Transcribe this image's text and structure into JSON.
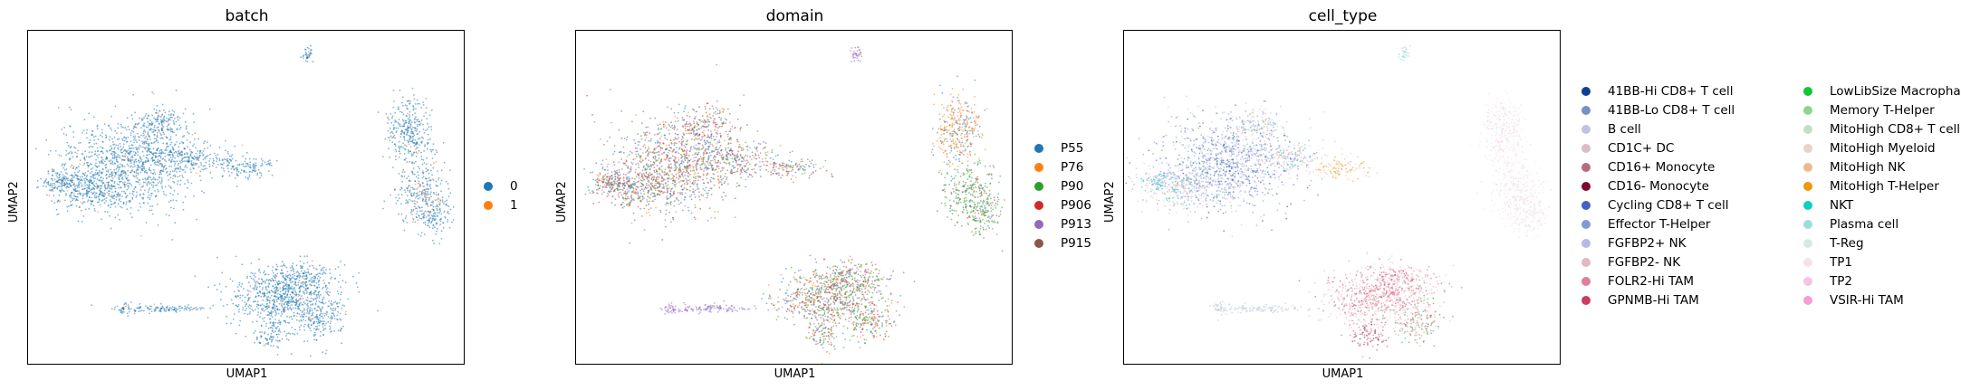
{
  "chart_data": [
    {
      "type": "scatter",
      "title": "batch",
      "xlabel": "UMAP1",
      "ylabel": "UMAP2",
      "ticks": "none",
      "legend_position": "right",
      "series": [
        {
          "name": "0",
          "color": "#1f77b4"
        },
        {
          "name": "1",
          "color": "#ff7f0e"
        }
      ]
    },
    {
      "type": "scatter",
      "title": "domain",
      "xlabel": "UMAP1",
      "ylabel": "UMAP2",
      "ticks": "none",
      "legend_position": "right",
      "series": [
        {
          "name": "P55",
          "color": "#1f77b4"
        },
        {
          "name": "P76",
          "color": "#ff7f0e"
        },
        {
          "name": "P90",
          "color": "#2ca02c"
        },
        {
          "name": "P906",
          "color": "#d62728"
        },
        {
          "name": "P913",
          "color": "#9467bd"
        },
        {
          "name": "P915",
          "color": "#8c564b"
        }
      ]
    },
    {
      "type": "scatter",
      "title": "cell_type",
      "xlabel": "UMAP1",
      "ylabel": "UMAP2",
      "ticks": "none",
      "legend_position": "right",
      "series": [
        {
          "name": "41BB-Hi CD8+ T cell",
          "color": "#0e3f93"
        },
        {
          "name": "41BB-Lo CD8+ T cell",
          "color": "#7a90c4"
        },
        {
          "name": "B cell",
          "color": "#c0c2de"
        },
        {
          "name": "CD1C+ DC",
          "color": "#dcbcc3"
        },
        {
          "name": "CD16+ Monocyte",
          "color": "#b56d7a"
        },
        {
          "name": "CD16- Monocyte",
          "color": "#7b0b32"
        },
        {
          "name": "Cycling CD8+ T cell",
          "color": "#4560c6"
        },
        {
          "name": "Effector T-Helper",
          "color": "#8598d5"
        },
        {
          "name": "FGFBP2+ NK",
          "color": "#b5bbe4"
        },
        {
          "name": "FGFBP2- NK",
          "color": "#e2b9c2"
        },
        {
          "name": "FOLR2-Hi TAM",
          "color": "#e07f98"
        },
        {
          "name": "GPNMB-Hi TAM",
          "color": "#ca3c66"
        },
        {
          "name": "LowLibSize Macrophage",
          "color": "#11c638"
        },
        {
          "name": "Memory T-Helper",
          "color": "#8dd593"
        },
        {
          "name": "MitoHigh CD8+ T cell",
          "color": "#c6dec7"
        },
        {
          "name": "MitoHigh Myeloid",
          "color": "#ead3c6"
        },
        {
          "name": "MitoHigh NK",
          "color": "#f0b98d"
        },
        {
          "name": "MitoHigh T-Helper",
          "color": "#ef9708"
        },
        {
          "name": "NKT",
          "color": "#0fcfc0"
        },
        {
          "name": "Plasma cell",
          "color": "#9cded6"
        },
        {
          "name": "T-Reg",
          "color": "#d5eae7"
        },
        {
          "name": "TP1",
          "color": "#f3e1eb"
        },
        {
          "name": "TP2",
          "color": "#f6c4e1"
        },
        {
          "name": "VSIR-Hi TAM",
          "color": "#f79cd4"
        }
      ]
    }
  ]
}
